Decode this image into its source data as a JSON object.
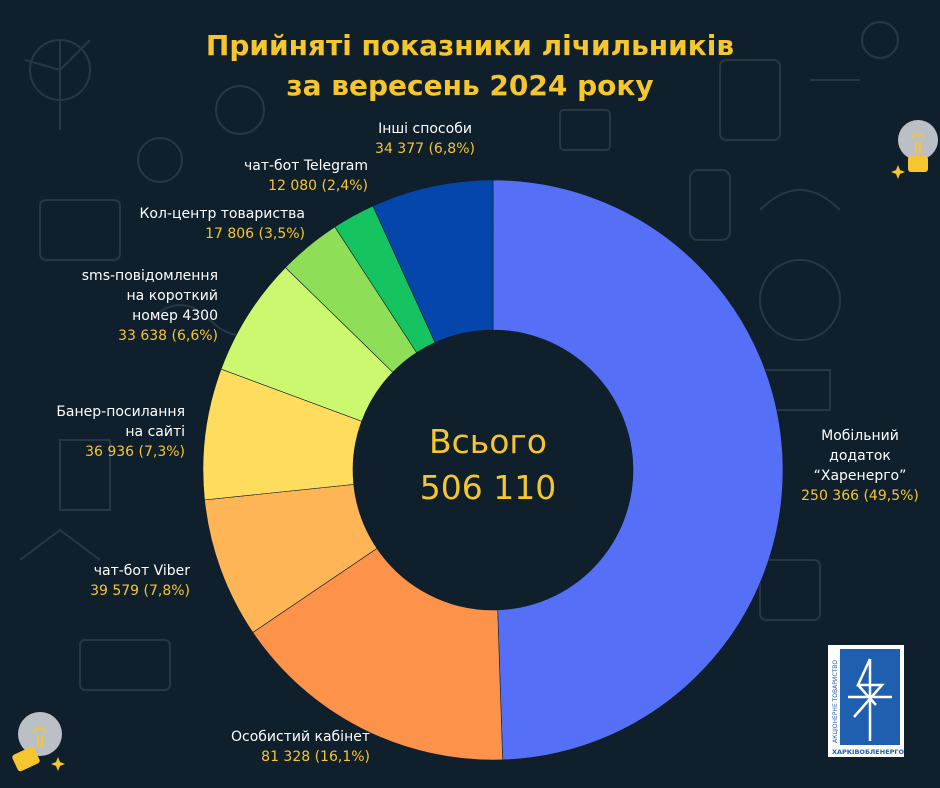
{
  "title_lines": [
    "Прийняті показники лічильників",
    "за вересень 2024 року"
  ],
  "center": {
    "label": "Всього",
    "value": "506 110"
  },
  "chart_data": {
    "type": "pie",
    "title": "Прийняті показники лічильників за вересень 2024 року",
    "total": 506110,
    "slices": [
      {
        "lines": [
          "Мобільний",
          "додаток",
          "“Харенерго”"
        ],
        "value_text": "250 366 (49,5%)",
        "value": 250366,
        "percent": 49.5,
        "color": "#5570f6"
      },
      {
        "lines": [
          "Особистий кабінет"
        ],
        "value_text": "81 328 (16,1%)",
        "value": 81328,
        "percent": 16.1,
        "color": "#fd924b"
      },
      {
        "lines": [
          "чат-бот Viber"
        ],
        "value_text": "39 579  (7,8%)",
        "value": 39579,
        "percent": 7.8,
        "color": "#feb555"
      },
      {
        "lines": [
          "Банер-посилання",
          "на сайті"
        ],
        "value_text": "36 936 (7,3%)",
        "value": 36936,
        "percent": 7.3,
        "color": "#fedd5e"
      },
      {
        "lines": [
          "sms-повідомлення",
          "на короткий",
          "номер 4300"
        ],
        "value_text": "33 638 (6,6%)",
        "value": 33638,
        "percent": 6.6,
        "color": "#ccf870"
      },
      {
        "lines": [
          "Кол-центр товариства"
        ],
        "value_text": "17 806 (3,5%)",
        "value": 17806,
        "percent": 3.5,
        "color": "#8fde57"
      },
      {
        "lines": [
          "чат-бот Telegram"
        ],
        "value_text": "12 080 (2,4%)",
        "value": 12080,
        "percent": 2.4,
        "color": "#15c460"
      },
      {
        "lines": [
          "Інші способи"
        ],
        "value_text": "34 377 (6,8%)",
        "value": 34377,
        "percent": 6.8,
        "color": "#0446ac"
      }
    ]
  },
  "logo": {
    "text_line_1": "АКЦІОНЕРНЕ ТОВАРИСТВО",
    "text_line_2": "ХАРКІВОБЛЕНЕРГО",
    "color": "#1e5fb0"
  },
  "colors": {
    "background": "#0f1f2b",
    "accent": "#f6c62f",
    "label": "#ffffff"
  }
}
